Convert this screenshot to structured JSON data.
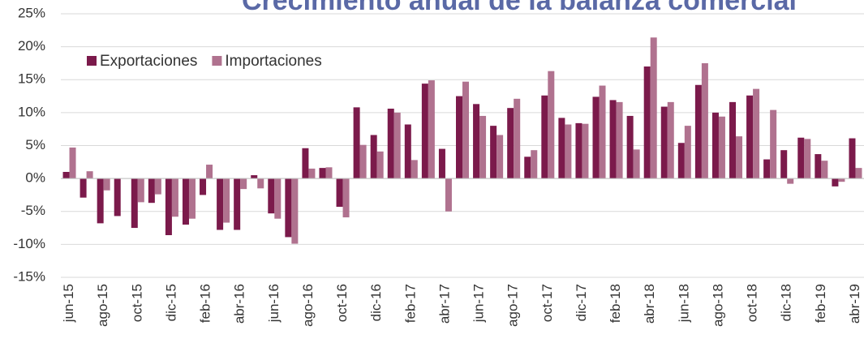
{
  "chart_data": {
    "type": "bar",
    "title": "Crecimiento anual de la balanza comercial",
    "categories": [
      "jun-15",
      null,
      "ago-15",
      null,
      "oct-15",
      null,
      "dic-15",
      null,
      "feb-16",
      null,
      "abr-16",
      null,
      "jun-16",
      null,
      "ago-16",
      null,
      "oct-16",
      null,
      "dic-16",
      null,
      "feb-17",
      null,
      "abr-17",
      null,
      "jun-17",
      null,
      "ago-17",
      null,
      "oct-17",
      null,
      "dic-17",
      null,
      "feb-18",
      null,
      "abr-18",
      null,
      "jun-18",
      null,
      "ago-18",
      null,
      "oct-18",
      null,
      "dic-18",
      null,
      "feb-19",
      null,
      "abr-19"
    ],
    "series": [
      {
        "name": "Exportaciones",
        "color": "#7b1a4b",
        "values": [
          1.0,
          -2.9,
          -6.8,
          -5.7,
          -7.5,
          -3.7,
          -8.6,
          -7.0,
          -2.5,
          -7.8,
          -7.8,
          0.5,
          -5.3,
          -8.9,
          4.6,
          1.6,
          -4.3,
          10.8,
          6.6,
          10.6,
          8.2,
          14.4,
          4.5,
          12.5,
          11.3,
          8.0,
          10.7,
          3.3,
          12.6,
          9.2,
          8.4,
          12.4,
          11.9,
          9.5,
          17.0,
          10.9,
          5.4,
          14.2,
          10.0,
          11.6,
          12.6,
          2.9,
          4.3,
          6.2,
          3.7,
          -1.2,
          6.1
        ]
      },
      {
        "name": "Importaciones",
        "color": "#b0728f",
        "values": [
          4.7,
          1.1,
          -1.8,
          0,
          -3.6,
          -2.4,
          -5.8,
          -6.1,
          2.1,
          -6.7,
          -1.6,
          -1.5,
          -6.1,
          -9.9,
          1.5,
          1.7,
          -5.9,
          5.1,
          4.1,
          10.0,
          2.8,
          14.9,
          -5.0,
          14.7,
          9.5,
          6.6,
          12.1,
          4.3,
          16.3,
          8.2,
          8.3,
          14.1,
          11.6,
          4.4,
          21.4,
          11.6,
          8.0,
          17.5,
          9.4,
          6.4,
          13.6,
          10.4,
          -0.8,
          6.0,
          2.7,
          -0.5,
          1.6
        ]
      }
    ],
    "ylim": [
      -15,
      25
    ],
    "yticks": [
      {
        "value": -15,
        "label": "-15%"
      },
      {
        "value": -10,
        "label": "-10%"
      },
      {
        "value": -5,
        "label": "-5%"
      },
      {
        "value": 0,
        "label": "0%"
      },
      {
        "value": 5,
        "label": "5%"
      },
      {
        "value": 10,
        "label": "10%"
      },
      {
        "value": 15,
        "label": "15%"
      },
      {
        "value": 20,
        "label": "20%"
      },
      {
        "value": 25,
        "label": "25%"
      }
    ],
    "grid": true,
    "legend": "top-left"
  }
}
